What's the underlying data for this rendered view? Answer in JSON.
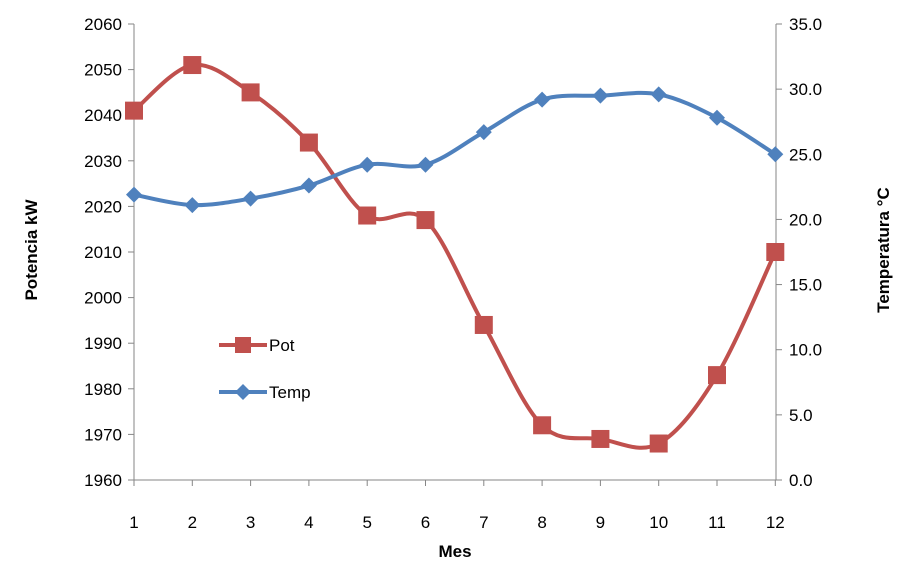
{
  "chart_data": {
    "type": "line",
    "title": "",
    "xlabel": "Mes",
    "ylabel_left": "Potencia kW",
    "ylabel_right": "Temperatura °C",
    "categories": [
      "1",
      "2",
      "3",
      "4",
      "5",
      "6",
      "7",
      "8",
      "9",
      "10",
      "11",
      "12"
    ],
    "ylim_left": [
      1960,
      2060
    ],
    "ylim_right": [
      0.0,
      35.0
    ],
    "yticks_left": [
      "1960",
      "1970",
      "1980",
      "1990",
      "2000",
      "2010",
      "2020",
      "2030",
      "2040",
      "2050",
      "2060"
    ],
    "yticks_right": [
      "0.0",
      "5.0",
      "10.0",
      "15.0",
      "20.0",
      "25.0",
      "30.0",
      "35.0"
    ],
    "grid": false,
    "smooth": true,
    "legend_position": "center-left",
    "series": [
      {
        "name": "Pot",
        "axis": "left",
        "marker": "square",
        "color": "#C0504D",
        "values": [
          2041,
          2051,
          2045,
          2034,
          2018,
          2017,
          1994,
          1972,
          1969,
          1968,
          1983,
          2010
        ]
      },
      {
        "name": "Temp",
        "axis": "right",
        "marker": "diamond",
        "color": "#4F81BD",
        "values": [
          21.9,
          21.1,
          21.6,
          22.6,
          24.2,
          24.2,
          26.7,
          29.2,
          29.5,
          29.6,
          27.8,
          25.0
        ]
      }
    ]
  }
}
